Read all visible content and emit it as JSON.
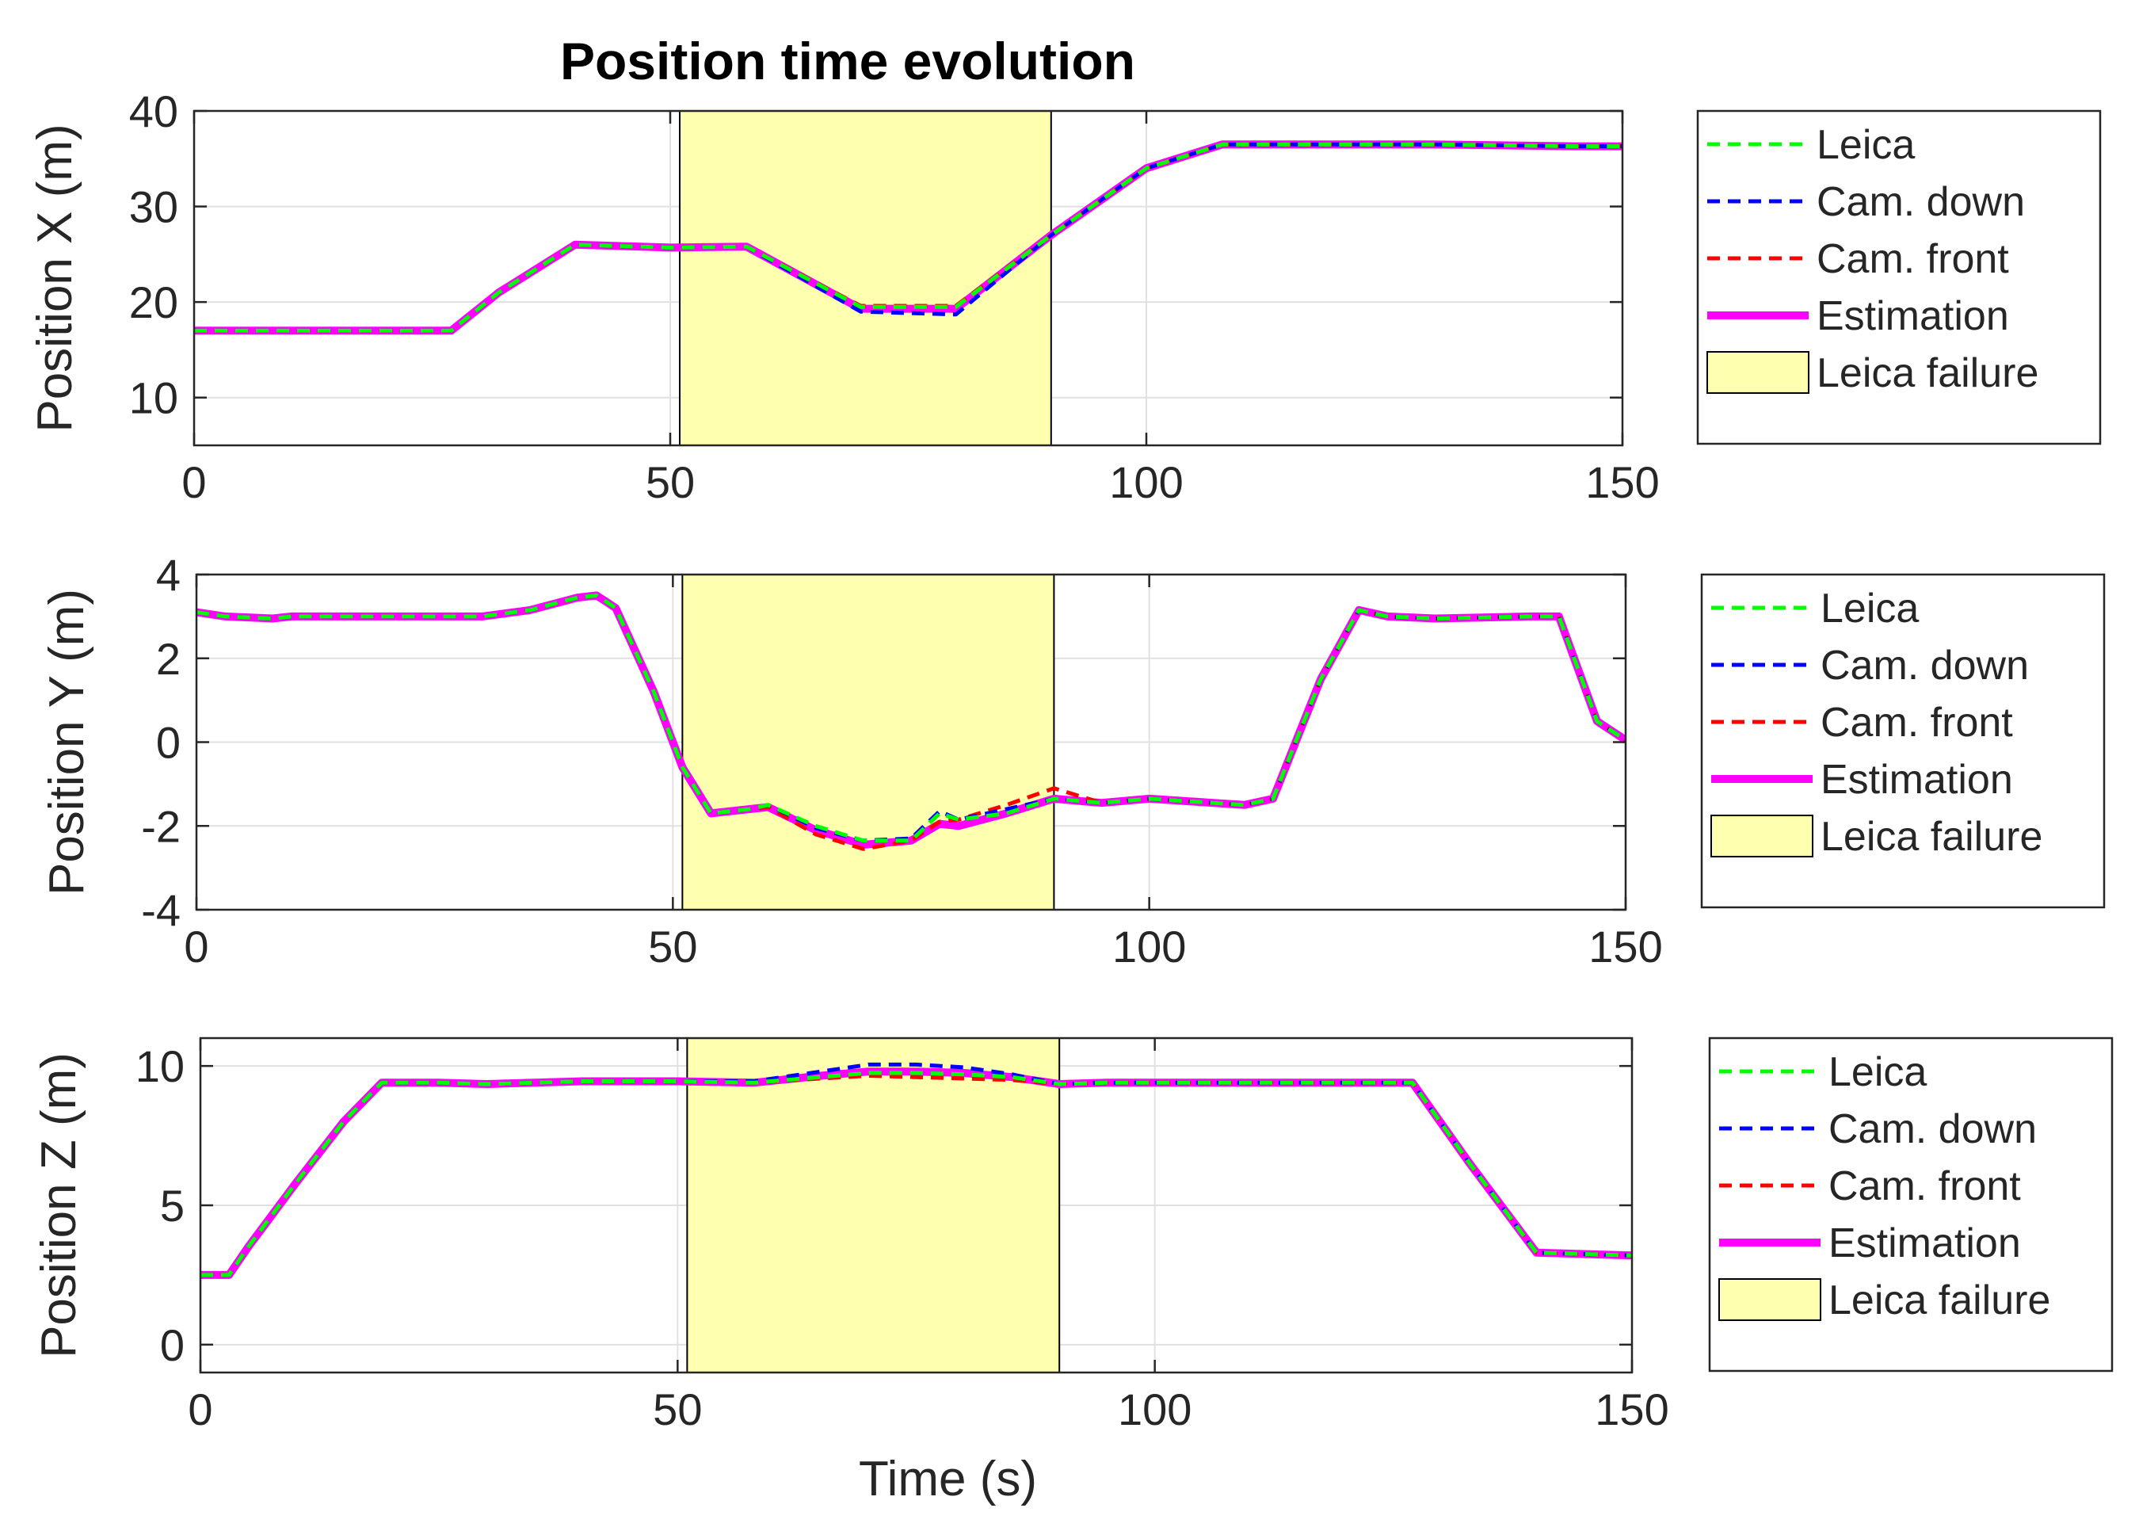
{
  "title": "Position time evolution",
  "colors": {
    "leica": "#00ff00",
    "cam_down": "#0000ff",
    "cam_front": "#ff0000",
    "estimation": "#ff00ff",
    "failure_fill": "#ffffb0",
    "grid": "#e1e1e1",
    "axis": "#262626"
  },
  "chart_data": [
    {
      "type": "line",
      "title": "Position time evolution",
      "xlabel": "",
      "ylabel": "Position X (m)",
      "xlim": [
        0,
        150
      ],
      "ylim": [
        5,
        40
      ],
      "xticks": [
        0,
        50,
        100,
        150
      ],
      "yticks": [
        10,
        20,
        30,
        40
      ],
      "grid": true,
      "legend_position": "outside-right",
      "legend": [
        "Leica",
        "Cam. down",
        "Cam. front",
        "Estimation",
        "Leica failure"
      ],
      "failure_interval": [
        51,
        90
      ],
      "series": [
        {
          "name": "Leica",
          "key": "leica",
          "style": "dashed",
          "x": [
            0,
            10,
            20,
            27,
            32,
            40,
            50,
            58,
            70,
            80,
            90,
            100,
            108,
            120,
            130,
            145,
            150
          ],
          "y": [
            17,
            17,
            17,
            17,
            21,
            26,
            25.7,
            25.8,
            19.5,
            19.5,
            27,
            34,
            36.5,
            36.5,
            36.5,
            36.3,
            36.3
          ]
        },
        {
          "name": "Cam. down",
          "key": "cam_down",
          "style": "dashed",
          "x": [
            0,
            10,
            20,
            27,
            32,
            40,
            50,
            58,
            70,
            80,
            90,
            100,
            108,
            120,
            130,
            145,
            150
          ],
          "y": [
            17,
            17,
            17,
            17,
            21,
            26,
            25.7,
            25.8,
            19,
            18.7,
            27,
            34,
            36.5,
            36.5,
            36.5,
            36.3,
            36.3
          ]
        },
        {
          "name": "Cam. front",
          "key": "cam_front",
          "style": "dashed",
          "x": [
            0,
            10,
            20,
            27,
            32,
            40,
            50,
            58,
            70,
            80,
            90,
            100,
            108,
            120,
            130,
            145,
            150
          ],
          "y": [
            17,
            17,
            17,
            17,
            21,
            26,
            25.7,
            25.8,
            19.6,
            19.6,
            27,
            34,
            36.5,
            36.5,
            36.5,
            36.3,
            36.3
          ]
        },
        {
          "name": "Estimation",
          "key": "estimation",
          "style": "solid",
          "x": [
            0,
            10,
            20,
            27,
            32,
            40,
            50,
            58,
            70,
            80,
            90,
            100,
            108,
            120,
            130,
            145,
            150
          ],
          "y": [
            17,
            17,
            17,
            17,
            21,
            26,
            25.7,
            25.8,
            19.3,
            19.3,
            27,
            34,
            36.5,
            36.5,
            36.5,
            36.3,
            36.3
          ]
        }
      ]
    },
    {
      "type": "line",
      "title": "",
      "xlabel": "",
      "ylabel": "Position Y (m)",
      "xlim": [
        0,
        150
      ],
      "ylim": [
        -4,
        4
      ],
      "xticks": [
        0,
        50,
        100,
        150
      ],
      "yticks": [
        -4,
        -2,
        0,
        2,
        4
      ],
      "grid": true,
      "legend_position": "outside-right",
      "legend": [
        "Leica",
        "Cam. down",
        "Cam. front",
        "Estimation",
        "Leica failure"
      ],
      "failure_interval": [
        51,
        90
      ],
      "series": [
        {
          "name": "Leica",
          "key": "leica",
          "style": "dashed",
          "x": [
            0,
            3,
            8,
            10,
            20,
            30,
            35,
            40,
            42,
            44,
            48,
            51,
            54,
            58,
            60,
            65,
            70,
            75,
            78,
            80,
            85,
            90,
            95,
            100,
            110,
            113,
            118,
            122,
            125,
            130,
            140,
            143,
            147,
            150
          ],
          "y": [
            3.1,
            3,
            2.95,
            3,
            3,
            3,
            3.15,
            3.45,
            3.5,
            3.2,
            1.2,
            -0.6,
            -1.7,
            -1.6,
            -1.5,
            -2,
            -2.35,
            -2.35,
            -1.7,
            -1.85,
            -1.7,
            -1.35,
            -1.45,
            -1.35,
            -1.5,
            -1.35,
            1.5,
            3.15,
            3,
            2.95,
            3,
            3,
            0.5,
            0.05
          ]
        },
        {
          "name": "Cam. down",
          "key": "cam_down",
          "style": "dashed",
          "x": [
            0,
            3,
            8,
            10,
            20,
            30,
            35,
            40,
            42,
            44,
            48,
            51,
            54,
            58,
            60,
            65,
            70,
            75,
            78,
            80,
            85,
            90,
            95,
            100,
            110,
            113,
            118,
            122,
            125,
            130,
            140,
            143,
            147,
            150
          ],
          "y": [
            3.1,
            3,
            2.95,
            3,
            3,
            3,
            3.15,
            3.45,
            3.5,
            3.2,
            1.2,
            -0.6,
            -1.7,
            -1.6,
            -1.5,
            -2.05,
            -2.35,
            -2.3,
            -1.65,
            -1.85,
            -1.6,
            -1.35,
            -1.45,
            -1.35,
            -1.5,
            -1.35,
            1.5,
            3.15,
            3,
            2.95,
            3,
            3,
            0.5,
            0.05
          ]
        },
        {
          "name": "Cam. front",
          "key": "cam_front",
          "style": "dashed",
          "x": [
            0,
            3,
            8,
            10,
            20,
            30,
            35,
            40,
            42,
            44,
            48,
            51,
            54,
            58,
            60,
            65,
            70,
            75,
            78,
            80,
            85,
            90,
            95,
            100,
            110,
            113,
            118,
            122,
            125,
            130,
            140,
            143,
            147,
            150
          ],
          "y": [
            3.1,
            3,
            2.95,
            3,
            3,
            3,
            3.15,
            3.45,
            3.5,
            3.2,
            1.2,
            -0.6,
            -1.7,
            -1.6,
            -1.55,
            -2.2,
            -2.55,
            -2.35,
            -1.9,
            -1.85,
            -1.5,
            -1.1,
            -1.45,
            -1.35,
            -1.5,
            -1.35,
            1.5,
            3.15,
            3,
            2.95,
            3,
            3,
            0.5,
            0.05
          ]
        },
        {
          "name": "Estimation",
          "key": "estimation",
          "style": "solid",
          "x": [
            0,
            3,
            8,
            10,
            20,
            30,
            35,
            40,
            42,
            44,
            48,
            51,
            54,
            58,
            60,
            65,
            70,
            75,
            78,
            80,
            85,
            90,
            95,
            100,
            110,
            113,
            118,
            122,
            125,
            130,
            140,
            143,
            147,
            150
          ],
          "y": [
            3.1,
            3,
            2.95,
            3,
            3,
            3,
            3.15,
            3.45,
            3.5,
            3.2,
            1.2,
            -0.6,
            -1.7,
            -1.6,
            -1.55,
            -2.1,
            -2.45,
            -2.35,
            -1.95,
            -2,
            -1.7,
            -1.35,
            -1.45,
            -1.35,
            -1.5,
            -1.35,
            1.5,
            3.15,
            3,
            2.95,
            3,
            3,
            0.5,
            0.05
          ]
        }
      ]
    },
    {
      "type": "line",
      "title": "",
      "xlabel": "Time (s)",
      "ylabel": "Position Z (m)",
      "xlim": [
        0,
        150
      ],
      "ylim": [
        -1,
        11
      ],
      "xticks": [
        0,
        50,
        100,
        150
      ],
      "yticks": [
        0,
        5,
        10
      ],
      "grid": true,
      "legend_position": "outside-right",
      "legend": [
        "Leica",
        "Cam. down",
        "Cam. front",
        "Estimation",
        "Leica failure"
      ],
      "failure_interval": [
        51,
        90
      ],
      "series": [
        {
          "name": "Leica",
          "key": "leica",
          "style": "dashed",
          "x": [
            0,
            3,
            5,
            10,
            15,
            19,
            25,
            30,
            40,
            50,
            58,
            65,
            70,
            75,
            80,
            85,
            90,
            95,
            100,
            110,
            120,
            127,
            133,
            140,
            145,
            150
          ],
          "y": [
            2.5,
            2.5,
            3.5,
            5.8,
            8,
            9.4,
            9.4,
            9.35,
            9.45,
            9.45,
            9.4,
            9.6,
            9.75,
            9.75,
            9.7,
            9.6,
            9.35,
            9.4,
            9.4,
            9.4,
            9.4,
            9.4,
            6.5,
            3.3,
            3.25,
            3.2
          ]
        },
        {
          "name": "Cam. down",
          "key": "cam_down",
          "style": "dashed",
          "x": [
            0,
            3,
            5,
            10,
            15,
            19,
            25,
            30,
            40,
            50,
            58,
            65,
            70,
            75,
            80,
            85,
            90,
            95,
            100,
            110,
            120,
            127,
            133,
            140,
            145,
            150
          ],
          "y": [
            2.5,
            2.5,
            3.5,
            5.8,
            8,
            9.4,
            9.4,
            9.35,
            9.45,
            9.45,
            9.45,
            9.8,
            10.05,
            10.05,
            9.95,
            9.7,
            9.35,
            9.4,
            9.4,
            9.4,
            9.4,
            9.4,
            6.5,
            3.3,
            3.25,
            3.2
          ]
        },
        {
          "name": "Cam. front",
          "key": "cam_front",
          "style": "dashed",
          "x": [
            0,
            3,
            5,
            10,
            15,
            19,
            25,
            30,
            40,
            50,
            58,
            65,
            70,
            75,
            80,
            85,
            90,
            95,
            100,
            110,
            120,
            127,
            133,
            140,
            145,
            150
          ],
          "y": [
            2.5,
            2.5,
            3.5,
            5.8,
            8,
            9.4,
            9.4,
            9.35,
            9.45,
            9.45,
            9.4,
            9.55,
            9.65,
            9.6,
            9.55,
            9.5,
            9.35,
            9.4,
            9.4,
            9.4,
            9.4,
            9.4,
            6.5,
            3.3,
            3.25,
            3.2
          ]
        },
        {
          "name": "Estimation",
          "key": "estimation",
          "style": "solid",
          "x": [
            0,
            3,
            5,
            10,
            15,
            19,
            25,
            30,
            40,
            50,
            58,
            65,
            70,
            75,
            80,
            85,
            90,
            95,
            100,
            110,
            120,
            127,
            133,
            140,
            145,
            150
          ],
          "y": [
            2.5,
            2.5,
            3.5,
            5.8,
            8,
            9.4,
            9.4,
            9.35,
            9.45,
            9.45,
            9.4,
            9.65,
            9.8,
            9.8,
            9.75,
            9.6,
            9.35,
            9.4,
            9.4,
            9.4,
            9.4,
            9.4,
            6.5,
            3.3,
            3.25,
            3.2
          ]
        }
      ]
    }
  ]
}
